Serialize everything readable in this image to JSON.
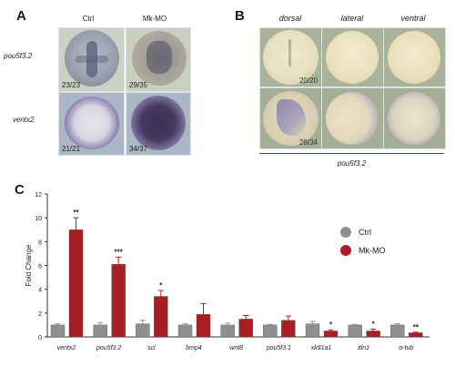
{
  "panel_a": {
    "letter": "A",
    "columns": [
      "Ctrl",
      "Mk-MO"
    ],
    "rows": [
      {
        "gene": "pou5f3.2",
        "counts": [
          "23/23",
          "29/35"
        ]
      },
      {
        "gene": "ventx2",
        "counts": [
          "21/21",
          "34/37"
        ]
      }
    ]
  },
  "panel_b": {
    "letter": "B",
    "views": [
      "dorsal",
      "lateral",
      "ventral"
    ],
    "counts": [
      "20/20",
      "28/34"
    ],
    "gene": "pou5f3.2"
  },
  "panel_c": {
    "letter": "C"
  },
  "chart_data": {
    "type": "bar",
    "ylabel": "Fold Change",
    "ylim": [
      0,
      12
    ],
    "yticks": [
      "0",
      "2",
      "4",
      "6",
      "8",
      "10",
      "12"
    ],
    "categories": [
      "ventx2",
      "pou5f3.2",
      "scl",
      "bmp4",
      "wnt8",
      "pou5f3.1",
      "xk81a1",
      "itln1",
      "α-tub"
    ],
    "series": [
      {
        "name": "Ctrl",
        "color": "#8f8f8f",
        "values": [
          1.0,
          1.0,
          1.1,
          1.0,
          1.0,
          1.0,
          1.1,
          1.0,
          1.0
        ],
        "errors": [
          0.1,
          0.2,
          0.3,
          0.1,
          0.15,
          0.05,
          0.2,
          0.05,
          0.1
        ]
      },
      {
        "name": "Mk-MO",
        "color": "#a81e22",
        "values": [
          9.0,
          6.1,
          3.4,
          1.9,
          1.5,
          1.4,
          0.5,
          0.5,
          0.35
        ],
        "errors": [
          1.0,
          0.6,
          0.5,
          0.9,
          0.3,
          0.35,
          0.1,
          0.15,
          0.05
        ]
      }
    ],
    "significance": [
      "**",
      "***",
      "*",
      "",
      "",
      "",
      "*",
      "*",
      "**"
    ],
    "legend_position": "right"
  }
}
